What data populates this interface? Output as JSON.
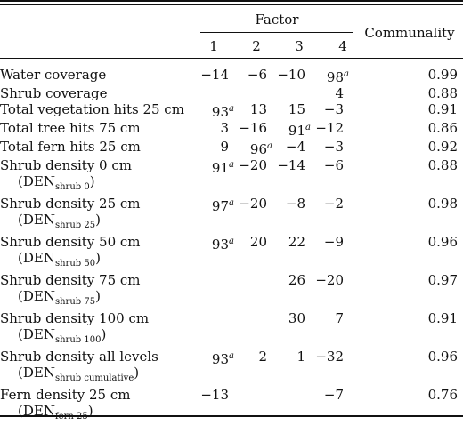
{
  "header": {
    "factor": "Factor",
    "communality": "Communality",
    "factor_numbers": [
      "1",
      "2",
      "3",
      "4"
    ]
  },
  "rows": [
    {
      "label": "Water coverage",
      "sub_main": "",
      "sub_text": "",
      "values": [
        "−14",
        "−6",
        "−10",
        "98"
      ],
      "sup": [
        "",
        "",
        "",
        "a"
      ],
      "communality": "0.99"
    },
    {
      "label": "Shrub coverage",
      "sub_main": "",
      "sub_text": "",
      "values": [
        "",
        "",
        "",
        "4"
      ],
      "sup": [
        "",
        "",
        "",
        ""
      ],
      "communality": "0.88"
    },
    {
      "label": "Total vegetation hits 25 cm",
      "sub_main": "",
      "sub_text": "",
      "values": [
        "93",
        "13",
        "15",
        "−3"
      ],
      "sup": [
        "a",
        "",
        "",
        ""
      ],
      "communality": "0.91"
    },
    {
      "label": "Total tree hits 75 cm",
      "sub_main": "",
      "sub_text": "",
      "values": [
        "3",
        "−16",
        "91",
        "−12"
      ],
      "sup": [
        "",
        "",
        "a",
        ""
      ],
      "communality": "0.86"
    },
    {
      "label": "Total fern hits 25 cm",
      "sub_main": "",
      "sub_text": "",
      "values": [
        "9",
        "96",
        "−4",
        "−3"
      ],
      "sup": [
        "",
        "a",
        "",
        ""
      ],
      "communality": "0.92"
    },
    {
      "label": "Shrub density 0 cm",
      "sub_main": "DEN",
      "sub_text": "shrub 0",
      "values": [
        "91",
        "−20",
        "−14",
        "−6"
      ],
      "sup": [
        "a",
        "",
        "",
        ""
      ],
      "communality": "0.88"
    },
    {
      "label": "Shrub density 25 cm",
      "sub_main": "DEN",
      "sub_text": "shrub 25",
      "values": [
        "97",
        "−20",
        "−8",
        "−2"
      ],
      "sup": [
        "a",
        "",
        "",
        ""
      ],
      "communality": "0.98"
    },
    {
      "label": "Shrub density 50 cm",
      "sub_main": "DEN",
      "sub_text": "shrub 50",
      "values": [
        "93",
        "20",
        "22",
        "−9"
      ],
      "sup": [
        "a",
        "",
        "",
        ""
      ],
      "communality": "0.96"
    },
    {
      "label": "Shrub density 75 cm",
      "sub_main": "DEN",
      "sub_text": "shrub 75",
      "values": [
        "",
        "",
        "26",
        "−20"
      ],
      "sup": [
        "",
        "",
        "",
        ""
      ],
      "communality": "0.97"
    },
    {
      "label": "Shrub density 100 cm",
      "sub_main": "DEN",
      "sub_text": "shrub 100",
      "values": [
        "",
        "",
        "30",
        "7"
      ],
      "sup": [
        "",
        "",
        "",
        ""
      ],
      "communality": "0.91"
    },
    {
      "label": "Shrub density all levels",
      "sub_main": "DEN",
      "sub_text": "shrub cumulative",
      "values": [
        "93",
        "2",
        "1",
        "−32"
      ],
      "sup": [
        "a",
        "",
        "",
        ""
      ],
      "communality": "0.96"
    },
    {
      "label": "Fern density 25 cm",
      "sub_main": "DEN",
      "sub_text": "fern 25",
      "values": [
        "−13",
        "",
        "",
        "−7"
      ],
      "sup": [
        "",
        "",
        "",
        ""
      ],
      "communality": "0.76"
    }
  ]
}
